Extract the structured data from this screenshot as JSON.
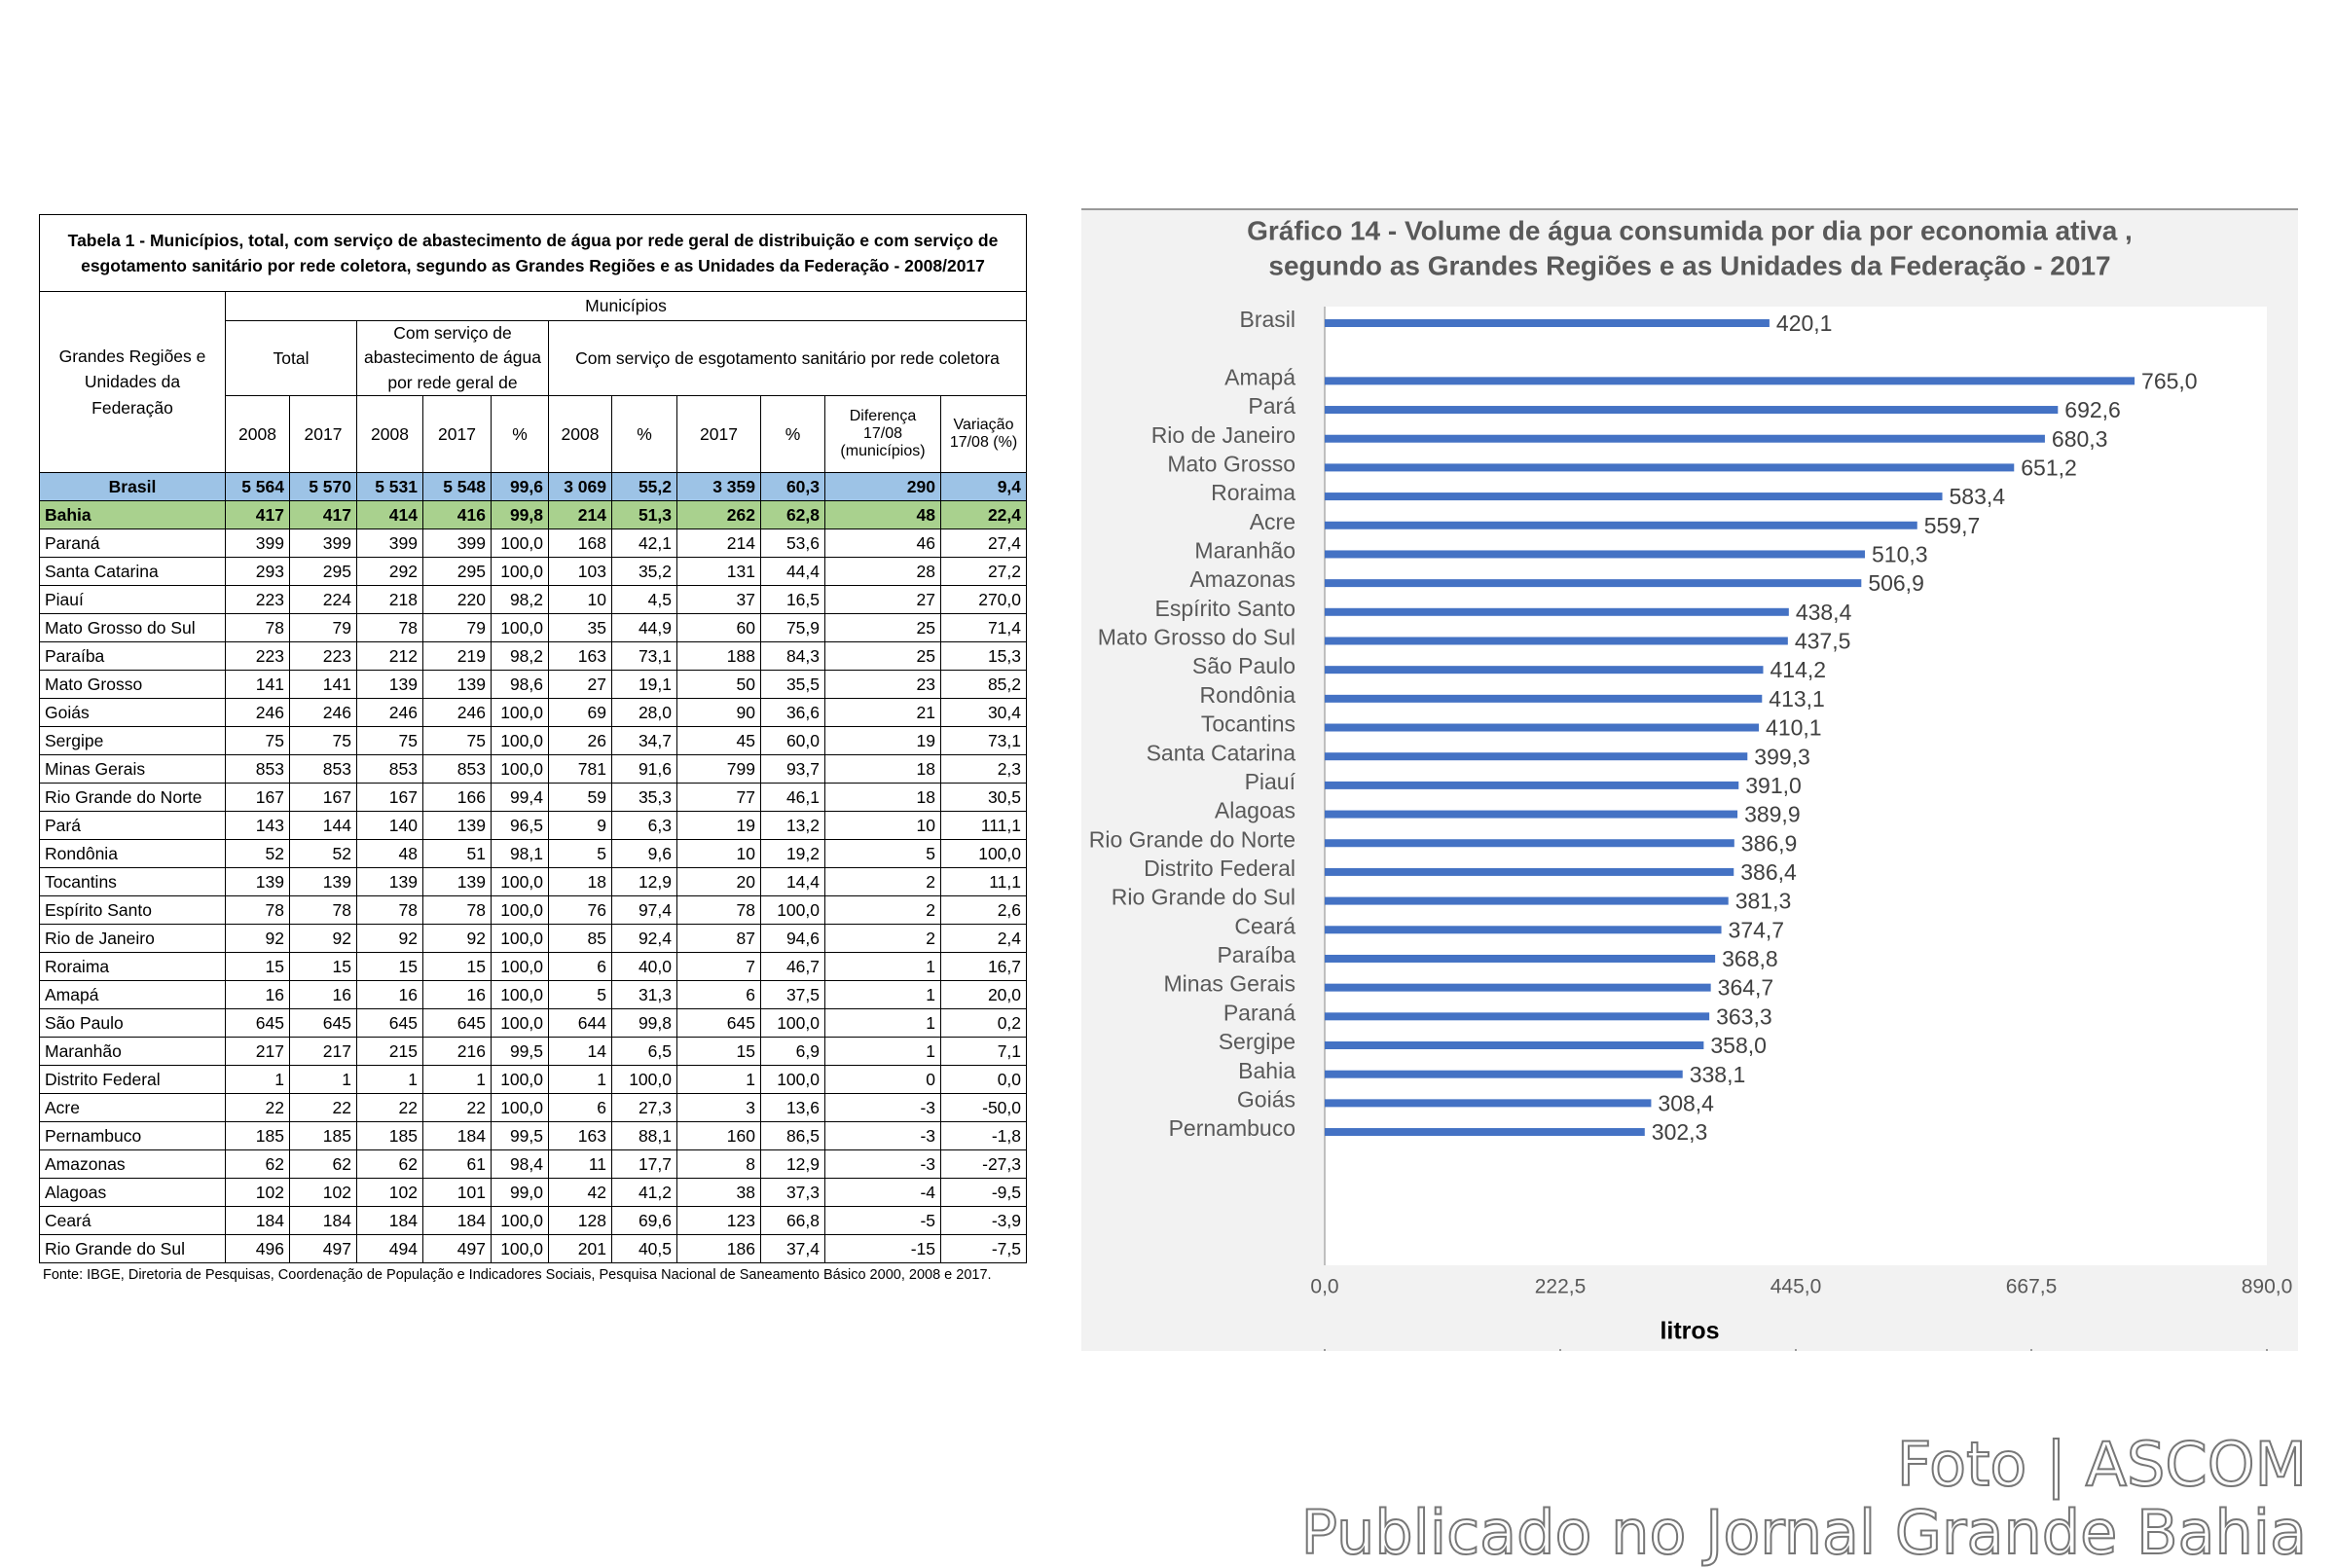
{
  "table": {
    "title": "Tabela 1 - Municípios, total, com serviço de abastecimento de água por rede geral de distribuição e com serviço de esgotamento sanitário por rede coletora, segundo as Grandes Regiões e as Unidades da Federação - 2008/2017",
    "header": {
      "region": "Grandes Regiões e Unidades da Federação",
      "municipios": "Municípios",
      "total": "Total",
      "agua": "Com serviço de abastecimento de água por rede geral de",
      "esgoto": "Com serviço de esgotamento sanitário por rede coletora",
      "columns": [
        "2008",
        "2017",
        "2008",
        "2017",
        "%",
        "2008",
        "%",
        "2017",
        "%",
        "Diferença 17/08 (municípios)",
        "Variação 17/08 (%)"
      ]
    },
    "rows": [
      [
        "Brasil",
        "5 564",
        "5 570",
        "5 531",
        "5 548",
        "99,6",
        "3 069",
        "55,2",
        "3 359",
        "60,3",
        "290",
        "9,4"
      ],
      [
        "Bahia",
        "417",
        "417",
        "414",
        "416",
        "99,8",
        "214",
        "51,3",
        "262",
        "62,8",
        "48",
        "22,4"
      ],
      [
        "Paraná",
        "399",
        "399",
        "399",
        "399",
        "100,0",
        "168",
        "42,1",
        "214",
        "53,6",
        "46",
        "27,4"
      ],
      [
        "Santa Catarina",
        "293",
        "295",
        "292",
        "295",
        "100,0",
        "103",
        "35,2",
        "131",
        "44,4",
        "28",
        "27,2"
      ],
      [
        "Piauí",
        "223",
        "224",
        "218",
        "220",
        "98,2",
        "10",
        "4,5",
        "37",
        "16,5",
        "27",
        "270,0"
      ],
      [
        "Mato Grosso do Sul",
        "78",
        "79",
        "78",
        "79",
        "100,0",
        "35",
        "44,9",
        "60",
        "75,9",
        "25",
        "71,4"
      ],
      [
        "Paraíba",
        "223",
        "223",
        "212",
        "219",
        "98,2",
        "163",
        "73,1",
        "188",
        "84,3",
        "25",
        "15,3"
      ],
      [
        "Mato Grosso",
        "141",
        "141",
        "139",
        "139",
        "98,6",
        "27",
        "19,1",
        "50",
        "35,5",
        "23",
        "85,2"
      ],
      [
        "Goiás",
        "246",
        "246",
        "246",
        "246",
        "100,0",
        "69",
        "28,0",
        "90",
        "36,6",
        "21",
        "30,4"
      ],
      [
        "Sergipe",
        "75",
        "75",
        "75",
        "75",
        "100,0",
        "26",
        "34,7",
        "45",
        "60,0",
        "19",
        "73,1"
      ],
      [
        "Minas Gerais",
        "853",
        "853",
        "853",
        "853",
        "100,0",
        "781",
        "91,6",
        "799",
        "93,7",
        "18",
        "2,3"
      ],
      [
        "Rio Grande do Norte",
        "167",
        "167",
        "167",
        "166",
        "99,4",
        "59",
        "35,3",
        "77",
        "46,1",
        "18",
        "30,5"
      ],
      [
        "Pará",
        "143",
        "144",
        "140",
        "139",
        "96,5",
        "9",
        "6,3",
        "19",
        "13,2",
        "10",
        "111,1"
      ],
      [
        "Rondônia",
        "52",
        "52",
        "48",
        "51",
        "98,1",
        "5",
        "9,6",
        "10",
        "19,2",
        "5",
        "100,0"
      ],
      [
        "Tocantins",
        "139",
        "139",
        "139",
        "139",
        "100,0",
        "18",
        "12,9",
        "20",
        "14,4",
        "2",
        "11,1"
      ],
      [
        "Espírito Santo",
        "78",
        "78",
        "78",
        "78",
        "100,0",
        "76",
        "97,4",
        "78",
        "100,0",
        "2",
        "2,6"
      ],
      [
        "Rio de Janeiro",
        "92",
        "92",
        "92",
        "92",
        "100,0",
        "85",
        "92,4",
        "87",
        "94,6",
        "2",
        "2,4"
      ],
      [
        "Roraima",
        "15",
        "15",
        "15",
        "15",
        "100,0",
        "6",
        "40,0",
        "7",
        "46,7",
        "1",
        "16,7"
      ],
      [
        "Amapá",
        "16",
        "16",
        "16",
        "16",
        "100,0",
        "5",
        "31,3",
        "6",
        "37,5",
        "1",
        "20,0"
      ],
      [
        "São Paulo",
        "645",
        "645",
        "645",
        "645",
        "100,0",
        "644",
        "99,8",
        "645",
        "100,0",
        "1",
        "0,2"
      ],
      [
        "Maranhão",
        "217",
        "217",
        "215",
        "216",
        "99,5",
        "14",
        "6,5",
        "15",
        "6,9",
        "1",
        "7,1"
      ],
      [
        "Distrito Federal",
        "1",
        "1",
        "1",
        "1",
        "100,0",
        "1",
        "100,0",
        "1",
        "100,0",
        "0",
        "0,0"
      ],
      [
        "Acre",
        "22",
        "22",
        "22",
        "22",
        "100,0",
        "6",
        "27,3",
        "3",
        "13,6",
        "-3",
        "-50,0"
      ],
      [
        "Pernambuco",
        "185",
        "185",
        "185",
        "184",
        "99,5",
        "163",
        "88,1",
        "160",
        "86,5",
        "-3",
        "-1,8"
      ],
      [
        "Amazonas",
        "62",
        "62",
        "62",
        "61",
        "98,4",
        "11",
        "17,7",
        "8",
        "12,9",
        "-3",
        "-27,3"
      ],
      [
        "Alagoas",
        "102",
        "102",
        "102",
        "101",
        "99,0",
        "42",
        "41,2",
        "38",
        "37,3",
        "-4",
        "-9,5"
      ],
      [
        "Ceará",
        "184",
        "184",
        "184",
        "184",
        "100,0",
        "128",
        "69,6",
        "123",
        "66,8",
        "-5",
        "-3,9"
      ],
      [
        "Rio Grande do Sul",
        "496",
        "497",
        "494",
        "497",
        "100,0",
        "201",
        "40,5",
        "186",
        "37,4",
        "-15",
        "-7,5"
      ]
    ],
    "source": "Fonte: IBGE, Diretoria de Pesquisas, Coordenação de População e Indicadores Sociais, Pesquisa Nacional de Saneamento Básico 2000, 2008 e 2017."
  },
  "chart_data": {
    "type": "bar",
    "orientation": "horizontal",
    "title": [
      "Gráfico 14 - Volume de água consumida por dia por economia ativa ,",
      "segundo as Grandes Regiões e as Unidades da Federação - 2017"
    ],
    "categories": [
      "Brasil",
      null,
      "Amapá",
      "Pará",
      "Rio de Janeiro",
      "Mato Grosso",
      "Roraima",
      "Acre",
      "Maranhão",
      "Amazonas",
      "Espírito Santo",
      "Mato Grosso do Sul",
      "São Paulo",
      "Rondônia",
      "Tocantins",
      "Santa Catarina",
      "Piauí",
      "Alagoas",
      "Rio Grande do Norte",
      "Distrito Federal",
      "Rio Grande do Sul",
      "Ceará",
      "Paraíba",
      "Minas Gerais",
      "Paraná",
      "Sergipe",
      "Bahia",
      "Goiás",
      "Pernambuco"
    ],
    "values": [
      420.1,
      null,
      765.0,
      692.6,
      680.3,
      651.2,
      583.4,
      559.7,
      510.3,
      506.9,
      438.4,
      437.5,
      414.2,
      413.1,
      410.1,
      399.3,
      391.0,
      389.9,
      386.9,
      386.4,
      381.3,
      374.7,
      368.8,
      364.7,
      363.3,
      358.0,
      338.1,
      308.4,
      302.3
    ],
    "value_labels": [
      "420,1",
      null,
      "765,0",
      "692,6",
      "680,3",
      "651,2",
      "583,4",
      "559,7",
      "510,3",
      "506,9",
      "438,4",
      "437,5",
      "414,2",
      "413,1",
      "410,1",
      "399,3",
      "391,0",
      "389,9",
      "386,9",
      "386,4",
      "381,3",
      "374,7",
      "368,8",
      "364,7",
      "363,3",
      "358,0",
      "338,1",
      "308,4",
      "302,3"
    ],
    "color": "#4472c4",
    "xlabel": "litros",
    "xlim": [
      0,
      890
    ],
    "xticks": [
      {
        "value": 0,
        "label": "0,0"
      },
      {
        "value": 222.5,
        "label": "222,5"
      },
      {
        "value": 445,
        "label": "445,0"
      },
      {
        "value": 667.5,
        "label": "667,5"
      },
      {
        "value": 890,
        "label": "890,0"
      }
    ]
  },
  "watermark": [
    "Foto | ASCOM",
    "Publicado no Jornal Grande Bahia"
  ]
}
